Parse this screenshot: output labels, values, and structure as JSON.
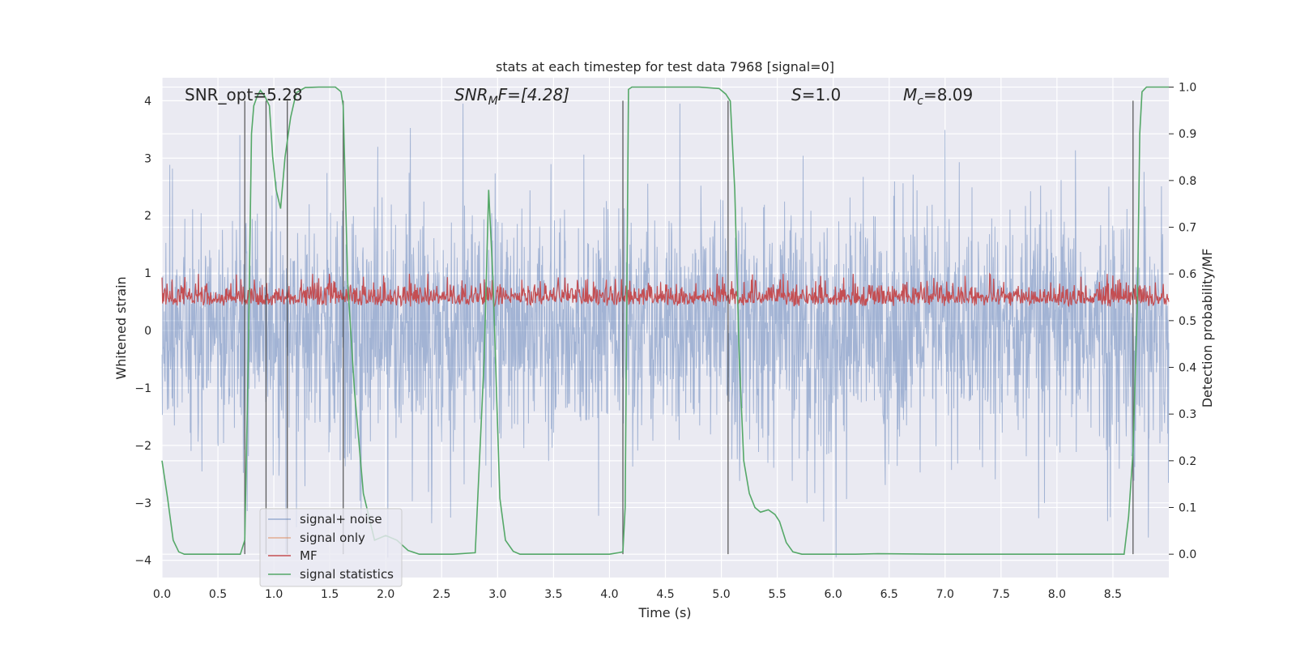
{
  "chart_data": {
    "type": "line",
    "title": "stats at each timestep for test data 7968 [signal=0]",
    "xlabel": "Time (s)",
    "ylabel": "Whitened strain",
    "y2label": "Detection probability/MF",
    "xlim": [
      0,
      9.0
    ],
    "ylim": [
      -4.3,
      4.4
    ],
    "y2lim": [
      -0.05,
      1.02
    ],
    "xticks": [
      "0.0",
      "0.5",
      "1.0",
      "1.5",
      "2.0",
      "2.5",
      "3.0",
      "3.5",
      "4.0",
      "4.5",
      "5.0",
      "5.5",
      "6.0",
      "6.5",
      "7.0",
      "7.5",
      "8.0",
      "8.5"
    ],
    "yticks": [
      "4",
      "3",
      "2",
      "1",
      "0",
      "−1",
      "−2",
      "−3",
      "−4"
    ],
    "y2ticks": [
      "1.0",
      "0.9",
      "0.8",
      "0.7",
      "0.6",
      "0.5",
      "0.4",
      "0.3",
      "0.2",
      "0.1",
      "0.0"
    ],
    "annotations": {
      "snr_opt": "SNR_opt=5.28",
      "snr_mf_sym": "SNR",
      "snr_mf_sub": "M",
      "snr_mf_rest": "F=[4.28]",
      "s_sym": "S",
      "s_rest": "=1.0",
      "mc_sym": "M",
      "mc_sub": "c",
      "mc_rest": "=8.09"
    },
    "legend": {
      "position": "lower-left",
      "entries": [
        {
          "label": "signal+ noise",
          "color": "#4c72b0"
        },
        {
          "label": "signal only",
          "color": "#dd8452"
        },
        {
          "label": "MF",
          "color": "#c44e52"
        },
        {
          "label": "signal statistics",
          "color": "#55a868"
        }
      ]
    },
    "vertical_lines_x": [
      0.74,
      0.93,
      1.12,
      1.62,
      4.12,
      5.06,
      8.68
    ],
    "series": [
      {
        "name": "signal statistics",
        "axis": "right",
        "color": "#55a868",
        "x": [
          0.0,
          0.05,
          0.1,
          0.15,
          0.2,
          0.3,
          0.5,
          0.7,
          0.74,
          0.77,
          0.8,
          0.82,
          0.85,
          0.88,
          0.92,
          0.96,
          0.99,
          1.02,
          1.06,
          1.1,
          1.15,
          1.2,
          1.28,
          1.4,
          1.55,
          1.6,
          1.62,
          1.66,
          1.72,
          1.8,
          1.9,
          2.0,
          2.1,
          2.2,
          2.3,
          2.4,
          2.6,
          2.8,
          2.88,
          2.92,
          2.96,
          3.02,
          3.07,
          3.14,
          3.2,
          3.3,
          3.5,
          3.8,
          4.0,
          4.08,
          4.12,
          4.14,
          4.17,
          4.2,
          4.3,
          4.5,
          4.8,
          4.98,
          5.04,
          5.08,
          5.12,
          5.16,
          5.2,
          5.25,
          5.3,
          5.35,
          5.42,
          5.48,
          5.52,
          5.58,
          5.64,
          5.72,
          5.8,
          6.2,
          6.4,
          7.0,
          8.0,
          8.6,
          8.64,
          8.68,
          8.72,
          8.74,
          8.76,
          8.8,
          8.85,
          8.9,
          9.0
        ],
        "values": [
          0.2,
          0.12,
          0.03,
          0.005,
          0.0,
          0.0,
          0.0,
          0.0,
          0.03,
          0.4,
          0.9,
          0.96,
          0.98,
          0.993,
          0.98,
          0.96,
          0.85,
          0.78,
          0.74,
          0.85,
          0.935,
          0.988,
          0.999,
          1.0,
          1.0,
          0.99,
          0.96,
          0.58,
          0.35,
          0.13,
          0.03,
          0.04,
          0.03,
          0.008,
          0.0,
          0.0,
          0.0,
          0.003,
          0.42,
          0.78,
          0.58,
          0.12,
          0.03,
          0.006,
          0.0,
          0.0,
          0.0,
          0.0,
          0.0,
          0.003,
          0.005,
          0.1,
          0.995,
          1.0,
          1.0,
          1.0,
          1.0,
          0.997,
          0.985,
          0.97,
          0.78,
          0.42,
          0.2,
          0.13,
          0.1,
          0.09,
          0.095,
          0.085,
          0.07,
          0.025,
          0.005,
          0.0,
          0.0,
          0.0,
          0.001,
          0.0,
          0.0,
          0.0,
          0.08,
          0.22,
          0.55,
          0.9,
          0.99,
          1.0,
          1.0,
          1.0,
          1.0
        ]
      },
      {
        "name": "signal+ noise",
        "axis": "left",
        "color": "#4c72b0",
        "note": "dense whitened-strain noise samples, envelope approx +/-2.7, spikes to +/-4"
      },
      {
        "name": "MF",
        "axis": "right",
        "color": "#c44e52",
        "note": "noisy matched-filter output, range approx 0.5 to 0.62"
      },
      {
        "name": "signal only",
        "axis": "left",
        "color": "#dd8452",
        "note": "not visible (signal=0)"
      }
    ]
  }
}
